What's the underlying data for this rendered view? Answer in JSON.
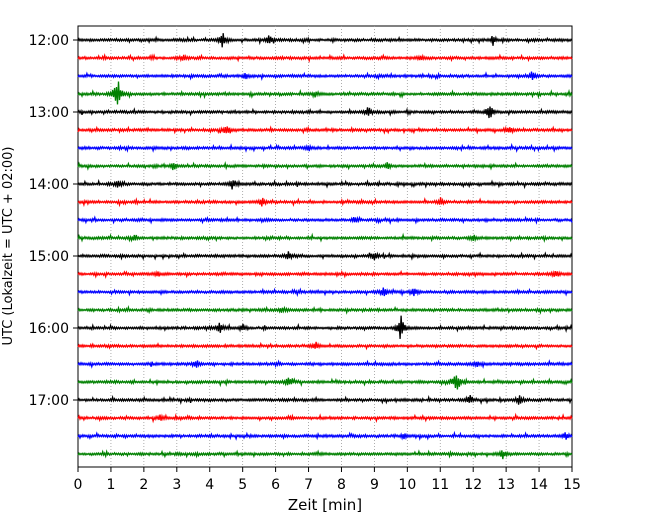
{
  "chart_data": {
    "type": "line",
    "title": "",
    "xlabel": "Zeit  [min]",
    "ylabel": "UTC (Lokalzeit = UTC + 02:00)",
    "xlim": [
      0,
      15
    ],
    "x_ticks": [
      "0",
      "1",
      "2",
      "3",
      "4",
      "5",
      "6",
      "7",
      "8",
      "9",
      "10",
      "11",
      "12",
      "13",
      "14",
      "15"
    ],
    "y_ticks": [
      "12:00",
      "13:00",
      "14:00",
      "15:00",
      "16:00",
      "17:00"
    ],
    "grid": "vertical dotted",
    "legend": "none",
    "trace_colors": [
      "#000000",
      "#ff0000",
      "#0000ff",
      "#008000"
    ],
    "trace_interval_min": 15,
    "traces": [
      {
        "start": "12:00",
        "color": "#000000",
        "events": [
          {
            "x": 4.4,
            "amp": 0.9
          },
          {
            "x": 5.8,
            "amp": 0.5
          },
          {
            "x": 12.6,
            "amp": 0.4
          }
        ]
      },
      {
        "start": "12:15",
        "color": "#ff0000",
        "events": [
          {
            "x": 3.2,
            "amp": 0.3
          },
          {
            "x": 10.4,
            "amp": 0.3
          }
        ]
      },
      {
        "start": "12:30",
        "color": "#0000ff",
        "events": [
          {
            "x": 5.1,
            "amp": 0.3
          },
          {
            "x": 13.8,
            "amp": 0.5
          }
        ]
      },
      {
        "start": "12:45",
        "color": "#008000",
        "events": [
          {
            "x": 1.2,
            "amp": 2.0
          },
          {
            "x": 7.2,
            "amp": 0.3
          }
        ]
      },
      {
        "start": "13:00",
        "color": "#000000",
        "events": [
          {
            "x": 8.8,
            "amp": 0.6
          },
          {
            "x": 12.5,
            "amp": 0.9
          }
        ]
      },
      {
        "start": "13:15",
        "color": "#ff0000",
        "events": [
          {
            "x": 4.5,
            "amp": 0.5
          },
          {
            "x": 13.1,
            "amp": 0.4
          }
        ]
      },
      {
        "start": "13:30",
        "color": "#0000ff",
        "events": [
          {
            "x": 7.0,
            "amp": 0.3
          }
        ]
      },
      {
        "start": "13:45",
        "color": "#008000",
        "events": [
          {
            "x": 2.9,
            "amp": 0.4
          },
          {
            "x": 9.4,
            "amp": 0.3
          }
        ]
      },
      {
        "start": "14:00",
        "color": "#000000",
        "events": [
          {
            "x": 1.2,
            "amp": 0.4
          },
          {
            "x": 4.7,
            "amp": 0.6
          }
        ]
      },
      {
        "start": "14:15",
        "color": "#ff0000",
        "events": [
          {
            "x": 5.6,
            "amp": 0.5
          },
          {
            "x": 11.0,
            "amp": 0.3
          }
        ]
      },
      {
        "start": "14:30",
        "color": "#0000ff",
        "events": [
          {
            "x": 8.4,
            "amp": 0.3
          }
        ]
      },
      {
        "start": "14:45",
        "color": "#008000",
        "events": [
          {
            "x": 1.7,
            "amp": 0.3
          },
          {
            "x": 12.0,
            "amp": 0.3
          }
        ]
      },
      {
        "start": "15:00",
        "color": "#000000",
        "events": [
          {
            "x": 6.4,
            "amp": 0.4
          },
          {
            "x": 9.0,
            "amp": 0.5
          }
        ]
      },
      {
        "start": "15:15",
        "color": "#ff0000",
        "events": [
          {
            "x": 2.4,
            "amp": 0.3
          },
          {
            "x": 14.5,
            "amp": 0.4
          }
        ]
      },
      {
        "start": "15:30",
        "color": "#0000ff",
        "events": [
          {
            "x": 9.3,
            "amp": 0.7
          },
          {
            "x": 10.2,
            "amp": 0.4
          }
        ]
      },
      {
        "start": "15:45",
        "color": "#008000",
        "events": [
          {
            "x": 6.2,
            "amp": 0.3
          }
        ]
      },
      {
        "start": "16:00",
        "color": "#000000",
        "events": [
          {
            "x": 4.3,
            "amp": 0.6
          },
          {
            "x": 5.0,
            "amp": 0.4
          },
          {
            "x": 9.8,
            "amp": 1.6
          }
        ]
      },
      {
        "start": "16:15",
        "color": "#ff0000",
        "events": [
          {
            "x": 7.2,
            "amp": 0.4
          }
        ]
      },
      {
        "start": "16:30",
        "color": "#0000ff",
        "events": [
          {
            "x": 3.6,
            "amp": 0.5
          },
          {
            "x": 12.1,
            "amp": 0.3
          }
        ]
      },
      {
        "start": "16:45",
        "color": "#008000",
        "events": [
          {
            "x": 6.4,
            "amp": 0.5
          },
          {
            "x": 11.5,
            "amp": 1.3
          }
        ]
      },
      {
        "start": "17:00",
        "color": "#000000",
        "events": [
          {
            "x": 11.9,
            "amp": 0.5
          },
          {
            "x": 13.4,
            "amp": 0.5
          }
        ]
      },
      {
        "start": "17:15",
        "color": "#ff0000",
        "events": [
          {
            "x": 2.5,
            "amp": 0.3
          }
        ]
      },
      {
        "start": "17:30",
        "color": "#0000ff",
        "events": [
          {
            "x": 9.9,
            "amp": 0.3
          },
          {
            "x": 14.8,
            "amp": 0.4
          }
        ]
      },
      {
        "start": "17:45",
        "color": "#008000",
        "events": [
          {
            "x": 12.9,
            "amp": 0.5
          }
        ]
      }
    ]
  }
}
